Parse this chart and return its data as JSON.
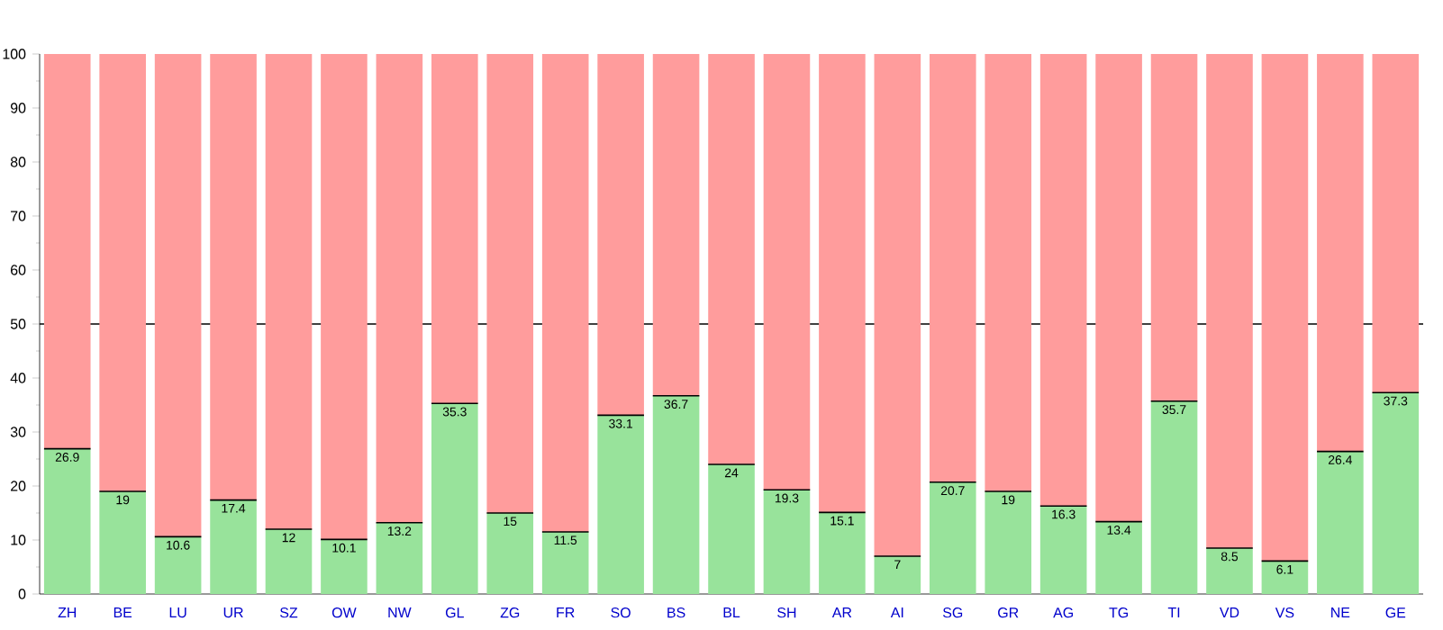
{
  "chart_data": {
    "type": "bar",
    "stacked": true,
    "categories": [
      "ZH",
      "BE",
      "LU",
      "UR",
      "SZ",
      "OW",
      "NW",
      "GL",
      "ZG",
      "FR",
      "SO",
      "BS",
      "BL",
      "SH",
      "AR",
      "AI",
      "SG",
      "GR",
      "AG",
      "TG",
      "TI",
      "VD",
      "VS",
      "NE",
      "GE"
    ],
    "series": [
      {
        "color": "#98e39b",
        "values": [
          26.9,
          19,
          10.6,
          17.4,
          12,
          10.1,
          13.2,
          35.3,
          15,
          11.5,
          33.1,
          36.7,
          24,
          19.3,
          15.1,
          7,
          20.7,
          19,
          16.3,
          13.4,
          35.7,
          8.5,
          6.1,
          26.4,
          37.3
        ],
        "value_labels": [
          "26.9",
          "19",
          "10.6",
          "17.4",
          "12",
          "10.1",
          "13.2",
          "35.3",
          "15",
          "11.5",
          "33.1",
          "36.7",
          "24",
          "19.3",
          "15.1",
          "7",
          "20.7",
          "19",
          "16.3",
          "13.4",
          "35.7",
          "8.5",
          "6.1",
          "26.4",
          "37.3"
        ]
      },
      {
        "color": "#ff9c9c",
        "values": [
          73.1,
          81,
          89.4,
          82.6,
          88,
          89.9,
          86.8,
          64.7,
          85,
          88.5,
          66.9,
          63.3,
          76,
          80.7,
          84.9,
          93,
          79.3,
          81,
          83.7,
          86.6,
          64.3,
          91.5,
          93.9,
          73.6,
          62.7
        ]
      }
    ],
    "ylim": [
      0,
      100
    ],
    "yticks": [
      0,
      10,
      20,
      30,
      40,
      50,
      60,
      70,
      80,
      90,
      100
    ],
    "ref_lines": [
      {
        "axis": "y",
        "value": 50,
        "color": "#000000"
      }
    ]
  }
}
